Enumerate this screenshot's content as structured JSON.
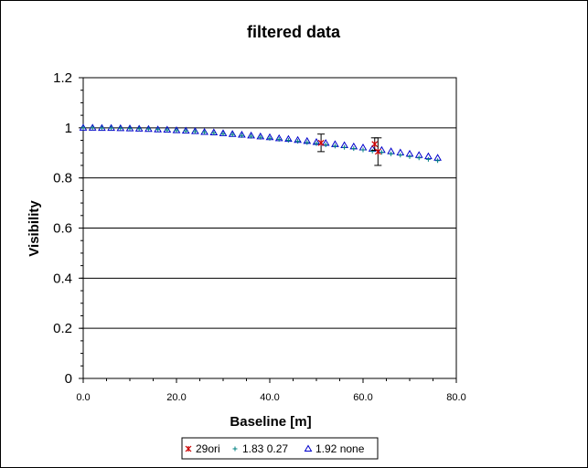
{
  "chart_data": {
    "type": "scatter",
    "title": "filtered data",
    "xlabel": "Baseline [m]",
    "ylabel": "Visibility",
    "xlim": [
      0,
      80
    ],
    "ylim": [
      0,
      1.2
    ],
    "x_ticks": [
      "0.0",
      "20.0",
      "40.0",
      "60.0",
      "80.0"
    ],
    "y_ticks": [
      "0",
      "0.2",
      "0.4",
      "0.6",
      "0.8",
      "1",
      "1.2"
    ],
    "grid": "horizontal major lines",
    "legend_position": "bottom",
    "series": [
      {
        "name": "29ori",
        "marker": "asterisk",
        "color": "#cc0000",
        "points": [
          {
            "x": 51.0,
            "y": 0.94,
            "err": 0.035
          },
          {
            "x": 62.5,
            "y": 0.935,
            "err": 0.025
          },
          {
            "x": 63.2,
            "y": 0.905,
            "err": 0.055
          }
        ]
      },
      {
        "name": "1.83 0.27",
        "marker": "plus",
        "color": "#008080",
        "points": [
          {
            "x": 0,
            "y": 1.0
          },
          {
            "x": 2,
            "y": 1.0
          },
          {
            "x": 4,
            "y": 0.999
          },
          {
            "x": 6,
            "y": 0.999
          },
          {
            "x": 8,
            "y": 0.998
          },
          {
            "x": 10,
            "y": 0.997
          },
          {
            "x": 12,
            "y": 0.996
          },
          {
            "x": 14,
            "y": 0.995
          },
          {
            "x": 16,
            "y": 0.993
          },
          {
            "x": 18,
            "y": 0.991
          },
          {
            "x": 20,
            "y": 0.989
          },
          {
            "x": 22,
            "y": 0.987
          },
          {
            "x": 24,
            "y": 0.985
          },
          {
            "x": 26,
            "y": 0.982
          },
          {
            "x": 28,
            "y": 0.979
          },
          {
            "x": 30,
            "y": 0.976
          },
          {
            "x": 32,
            "y": 0.973
          },
          {
            "x": 34,
            "y": 0.969
          },
          {
            "x": 36,
            "y": 0.966
          },
          {
            "x": 38,
            "y": 0.962
          },
          {
            "x": 40,
            "y": 0.958
          },
          {
            "x": 42,
            "y": 0.954
          },
          {
            "x": 44,
            "y": 0.95
          },
          {
            "x": 46,
            "y": 0.946
          },
          {
            "x": 48,
            "y": 0.941
          },
          {
            "x": 50,
            "y": 0.937
          },
          {
            "x": 52,
            "y": 0.932
          },
          {
            "x": 54,
            "y": 0.927
          },
          {
            "x": 56,
            "y": 0.922
          },
          {
            "x": 58,
            "y": 0.917
          },
          {
            "x": 60,
            "y": 0.912
          },
          {
            "x": 62,
            "y": 0.907
          },
          {
            "x": 64,
            "y": 0.902
          },
          {
            "x": 66,
            "y": 0.896
          },
          {
            "x": 68,
            "y": 0.891
          },
          {
            "x": 70,
            "y": 0.885
          },
          {
            "x": 72,
            "y": 0.88
          },
          {
            "x": 74,
            "y": 0.874
          },
          {
            "x": 76,
            "y": 0.869
          }
        ]
      },
      {
        "name": "1.92 none",
        "marker": "triangle",
        "color": "#0000cc",
        "points": [
          {
            "x": 0,
            "y": 1.0
          },
          {
            "x": 2,
            "y": 1.0
          },
          {
            "x": 4,
            "y": 0.999
          },
          {
            "x": 6,
            "y": 0.999
          },
          {
            "x": 8,
            "y": 0.998
          },
          {
            "x": 10,
            "y": 0.997
          },
          {
            "x": 12,
            "y": 0.996
          },
          {
            "x": 14,
            "y": 0.995
          },
          {
            "x": 16,
            "y": 0.993
          },
          {
            "x": 18,
            "y": 0.992
          },
          {
            "x": 20,
            "y": 0.99
          },
          {
            "x": 22,
            "y": 0.988
          },
          {
            "x": 24,
            "y": 0.986
          },
          {
            "x": 26,
            "y": 0.983
          },
          {
            "x": 28,
            "y": 0.981
          },
          {
            "x": 30,
            "y": 0.978
          },
          {
            "x": 32,
            "y": 0.975
          },
          {
            "x": 34,
            "y": 0.972
          },
          {
            "x": 36,
            "y": 0.969
          },
          {
            "x": 38,
            "y": 0.965
          },
          {
            "x": 40,
            "y": 0.962
          },
          {
            "x": 42,
            "y": 0.958
          },
          {
            "x": 44,
            "y": 0.955
          },
          {
            "x": 46,
            "y": 0.951
          },
          {
            "x": 48,
            "y": 0.947
          },
          {
            "x": 50,
            "y": 0.943
          },
          {
            "x": 52,
            "y": 0.939
          },
          {
            "x": 54,
            "y": 0.934
          },
          {
            "x": 56,
            "y": 0.93
          },
          {
            "x": 58,
            "y": 0.925
          },
          {
            "x": 60,
            "y": 0.921
          },
          {
            "x": 62,
            "y": 0.916
          },
          {
            "x": 64,
            "y": 0.911
          },
          {
            "x": 66,
            "y": 0.906
          },
          {
            "x": 68,
            "y": 0.901
          },
          {
            "x": 70,
            "y": 0.896
          },
          {
            "x": 72,
            "y": 0.891
          },
          {
            "x": 74,
            "y": 0.886
          },
          {
            "x": 76,
            "y": 0.88
          }
        ]
      }
    ]
  }
}
